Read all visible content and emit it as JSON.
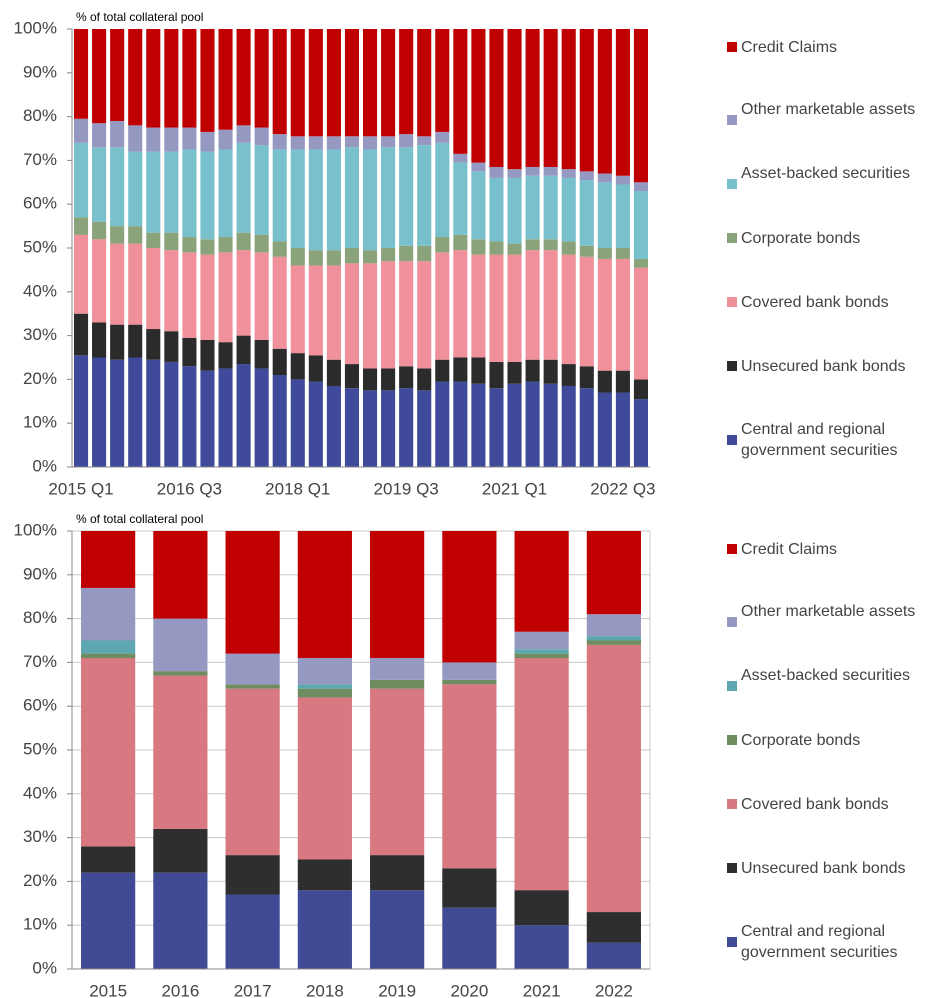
{
  "chart_data": [
    {
      "type": "stacked_bar",
      "subtitle": "% of total collateral pool",
      "categories": [
        "2015 Q1",
        null,
        null,
        null,
        null,
        null,
        "2016 Q3",
        null,
        null,
        null,
        null,
        null,
        "2018 Q1",
        null,
        null,
        null,
        null,
        null,
        "2019 Q3",
        null,
        null,
        null,
        null,
        null,
        "2021 Q1",
        null,
        null,
        null,
        null,
        null,
        "2022 Q3",
        null
      ],
      "series": [
        {
          "name": "Central and regional government securities",
          "color": "#3f4a9a",
          "values": [
            25.5,
            25,
            24.5,
            25,
            24.5,
            24,
            23,
            22,
            22.5,
            23.5,
            22.5,
            21,
            20,
            19.5,
            18.5,
            18,
            17.5,
            17.5,
            18,
            17.5,
            19.5,
            19.5,
            19,
            18,
            19,
            19.5,
            19,
            18.5,
            18,
            17,
            17,
            15.5
          ]
        },
        {
          "name": "Unsecured bank bonds",
          "color": "#2b2b2b",
          "values": [
            9.5,
            8,
            8,
            7.5,
            7,
            7,
            6.5,
            7,
            6,
            6.5,
            6.5,
            6,
            6,
            6,
            6,
            5.5,
            5,
            5,
            5,
            5,
            5,
            5.5,
            6,
            6,
            5,
            5,
            5.5,
            5,
            5,
            5,
            5,
            4.5
          ]
        },
        {
          "name": "Covered bank bonds",
          "color": "#f0909a",
          "values": [
            18,
            19,
            18.5,
            18.5,
            18.5,
            18.5,
            19.5,
            19.5,
            20.5,
            19.5,
            20,
            21,
            20,
            20.5,
            21.5,
            23,
            24,
            24.5,
            24,
            24.5,
            24.5,
            24.5,
            23.5,
            24.5,
            24.5,
            25,
            25,
            25,
            25,
            25.5,
            25.5,
            25.5
          ]
        },
        {
          "name": "Corporate bonds",
          "color": "#8aa37a",
          "values": [
            4,
            4,
            4,
            4,
            3.5,
            4,
            3.5,
            3.5,
            3.5,
            4,
            4,
            3.5,
            4,
            3.5,
            3.5,
            3.5,
            3,
            3,
            3.5,
            3.5,
            3.5,
            3.5,
            3.5,
            3,
            2.5,
            2.5,
            2.5,
            3,
            2.5,
            2.5,
            2.5,
            2
          ]
        },
        {
          "name": "Asset-backed securities",
          "color": "#78c0cc",
          "values": [
            17,
            17,
            18,
            17,
            18.5,
            18.5,
            20,
            20,
            20,
            20.5,
            20.5,
            21,
            22.5,
            23,
            23,
            23,
            23,
            23,
            22.5,
            23,
            21.5,
            16.5,
            15.5,
            14.5,
            15,
            14.5,
            14.5,
            14.5,
            15,
            15,
            14.5,
            15.5
          ]
        },
        {
          "name": "Other marketable assets",
          "color": "#9599c2",
          "values": [
            5.5,
            5.5,
            6,
            6,
            5.5,
            5.5,
            5,
            4.5,
            4.5,
            4,
            4,
            3.5,
            3,
            3,
            3,
            2.5,
            3,
            2.5,
            3,
            2,
            2.5,
            2,
            2,
            2.5,
            2,
            2,
            2,
            2,
            2,
            2,
            2,
            2
          ]
        },
        {
          "name": "Credit Claims",
          "color": "#c00000",
          "values": [
            20.5,
            21.5,
            21,
            22,
            22.5,
            22.5,
            22.5,
            23.5,
            23,
            22,
            22.5,
            24,
            24.5,
            24.5,
            24.5,
            24.5,
            24.5,
            24.5,
            24,
            24.5,
            23.5,
            28.5,
            30.5,
            31.5,
            32,
            31.5,
            31.5,
            32,
            32.5,
            33,
            33.5,
            35
          ]
        }
      ],
      "ylim": [
        0,
        100
      ],
      "yticks": [
        {
          "value": 0,
          "label": "0%"
        },
        {
          "value": 10,
          "label": "10%"
        },
        {
          "value": 20,
          "label": "20%"
        },
        {
          "value": 30,
          "label": "30%"
        },
        {
          "value": 40,
          "label": "40%"
        },
        {
          "value": 50,
          "label": "50%"
        },
        {
          "value": 60,
          "label": "60%"
        },
        {
          "value": 70,
          "label": "70%"
        },
        {
          "value": 80,
          "label": "80%"
        },
        {
          "value": 90,
          "label": "90%"
        },
        {
          "value": 100,
          "label": "100%"
        }
      ],
      "grid": false
    },
    {
      "type": "stacked_bar",
      "subtitle": "% of total collateral pool",
      "categories": [
        "2015",
        "2016",
        "2017",
        "2018",
        "2019",
        "2020",
        "2021",
        "2022"
      ],
      "series": [
        {
          "name": "Central and regional government securities",
          "color": "#414a94",
          "values": [
            22,
            22,
            17,
            18,
            18,
            14,
            10,
            6
          ]
        },
        {
          "name": "Unsecured bank bonds",
          "color": "#2e2e2e",
          "values": [
            6,
            10,
            9,
            7,
            8,
            9,
            8,
            7
          ]
        },
        {
          "name": "Covered bank bonds",
          "color": "#d87880",
          "values": [
            43,
            35,
            38,
            37,
            38,
            42,
            53,
            61
          ]
        },
        {
          "name": "Corporate bonds",
          "color": "#6e8c60",
          "values": [
            1,
            1,
            1,
            2,
            2,
            1,
            1,
            1
          ]
        },
        {
          "name": "Asset-backed securities",
          "color": "#5fa7b0",
          "values": [
            3,
            0,
            0,
            1,
            0,
            0,
            1,
            1
          ]
        },
        {
          "name": "Other marketable assets",
          "color": "#9599c2",
          "values": [
            12,
            12,
            7,
            6,
            5,
            4,
            4,
            5
          ]
        },
        {
          "name": "Credit Claims",
          "color": "#c00000",
          "values": [
            13,
            20,
            28,
            29,
            29,
            30,
            23,
            19
          ]
        }
      ],
      "ylim": [
        0,
        100
      ],
      "yticks": [
        {
          "value": 0,
          "label": "0%"
        },
        {
          "value": 10,
          "label": "10%"
        },
        {
          "value": 20,
          "label": "20%"
        },
        {
          "value": 30,
          "label": "30%"
        },
        {
          "value": 40,
          "label": "40%"
        },
        {
          "value": 50,
          "label": "50%"
        },
        {
          "value": 60,
          "label": "60%"
        },
        {
          "value": 70,
          "label": "70%"
        },
        {
          "value": 80,
          "label": "80%"
        },
        {
          "value": 90,
          "label": "90%"
        },
        {
          "value": 100,
          "label": "100%"
        }
      ],
      "grid": true
    }
  ]
}
